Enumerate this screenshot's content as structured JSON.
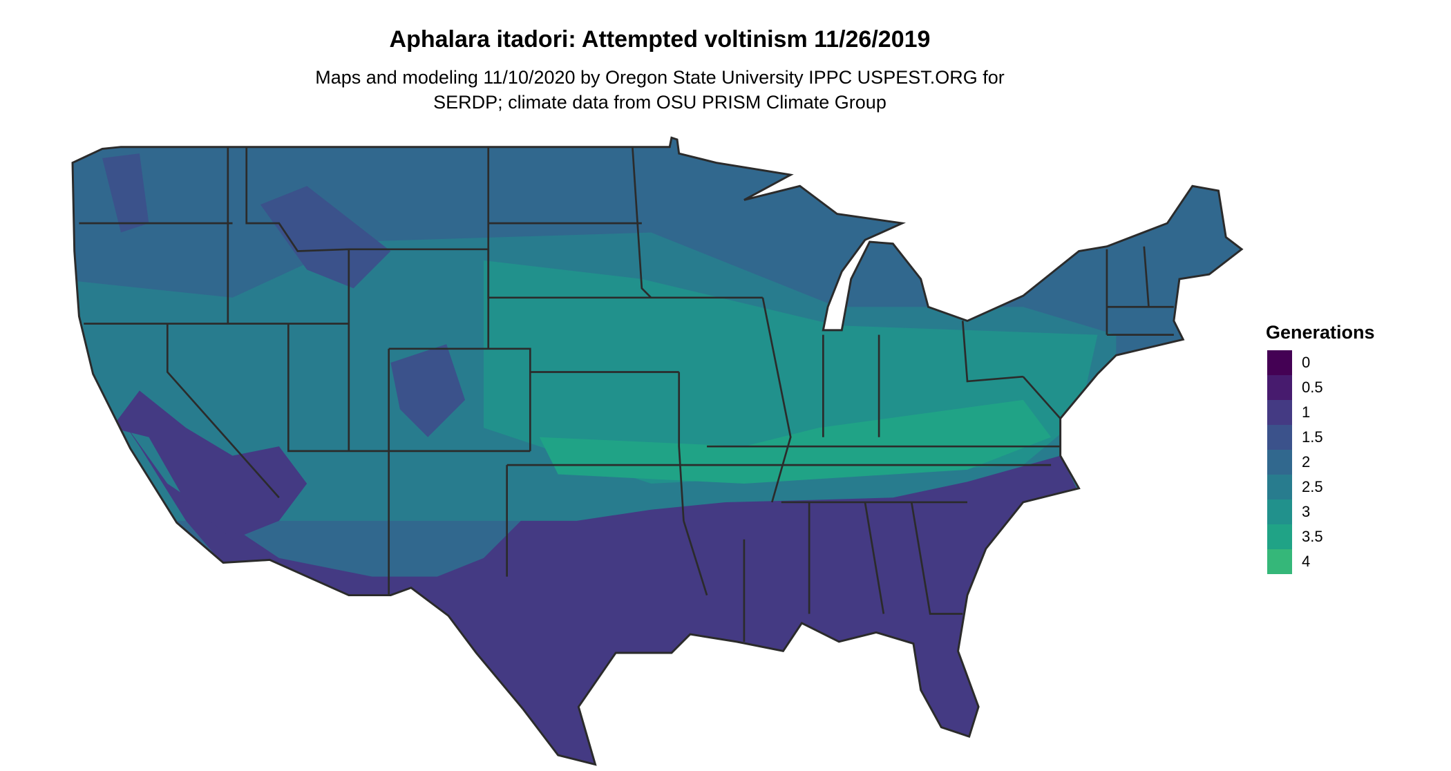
{
  "chart_data": {
    "type": "heatmap",
    "title": "Aphalara itadori: Attempted voltinism 11/26/2019",
    "subtitle_lines": [
      "Maps and modeling 11/10/2020 by Oregon State University IPPC USPEST.ORG for",
      "SERDP; climate data from OSU PRISM Climate Group"
    ],
    "map_region": "Contiguous United States with state borders",
    "legend": {
      "title": "Generations",
      "placement": "right",
      "items": [
        {
          "label": "0",
          "value": 0,
          "color": "#440154"
        },
        {
          "label": "0.5",
          "value": 0.5,
          "color": "#471b6e"
        },
        {
          "label": "1",
          "value": 1,
          "color": "#443a83"
        },
        {
          "label": "1.5",
          "value": 1.5,
          "color": "#3b528b"
        },
        {
          "label": "2",
          "value": 2,
          "color": "#31688e"
        },
        {
          "label": "2.5",
          "value": 2.5,
          "color": "#287c8e"
        },
        {
          "label": "3",
          "value": 3,
          "color": "#21918c"
        },
        {
          "label": "3.5",
          "value": 3.5,
          "color": "#20a386"
        },
        {
          "label": "4",
          "value": 4,
          "color": "#35b779"
        }
      ]
    }
  }
}
